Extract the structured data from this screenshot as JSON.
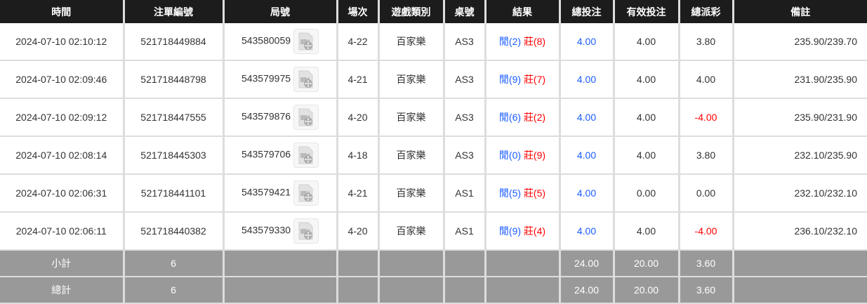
{
  "headers": [
    "時間",
    "注單編號",
    "局號",
    "場次",
    "遊戲類別",
    "桌號",
    "結果",
    "總投注",
    "有效投注",
    "總派彩",
    "備註"
  ],
  "rows": [
    {
      "time": "2024-07-10 02:10:12",
      "bet_id": "521718449884",
      "round": "543580059",
      "shoe": "4-22",
      "game": "百家樂",
      "table": "AS3",
      "player": "閒(2)",
      "banker": "莊(8)",
      "total_bet": "4.00",
      "valid_bet": "4.00",
      "payout": "3.80",
      "payout_negative": false,
      "note": "235.90/239.70"
    },
    {
      "time": "2024-07-10 02:09:46",
      "bet_id": "521718448798",
      "round": "543579975",
      "shoe": "4-21",
      "game": "百家樂",
      "table": "AS3",
      "player": "閒(9)",
      "banker": "莊(7)",
      "total_bet": "4.00",
      "valid_bet": "4.00",
      "payout": "4.00",
      "payout_negative": false,
      "note": "231.90/235.90"
    },
    {
      "time": "2024-07-10 02:09:12",
      "bet_id": "521718447555",
      "round": "543579876",
      "shoe": "4-20",
      "game": "百家樂",
      "table": "AS3",
      "player": "閒(6)",
      "banker": "莊(2)",
      "total_bet": "4.00",
      "valid_bet": "4.00",
      "payout": "-4.00",
      "payout_negative": true,
      "note": "235.90/231.90"
    },
    {
      "time": "2024-07-10 02:08:14",
      "bet_id": "521718445303",
      "round": "543579706",
      "shoe": "4-18",
      "game": "百家樂",
      "table": "AS3",
      "player": "閒(0)",
      "banker": "莊(9)",
      "total_bet": "4.00",
      "valid_bet": "4.00",
      "payout": "3.80",
      "payout_negative": false,
      "note": "232.10/235.90"
    },
    {
      "time": "2024-07-10 02:06:31",
      "bet_id": "521718441101",
      "round": "543579421",
      "shoe": "4-21",
      "game": "百家樂",
      "table": "AS1",
      "player": "閒(5)",
      "banker": "莊(5)",
      "total_bet": "4.00",
      "valid_bet": "0.00",
      "payout": "0.00",
      "payout_negative": false,
      "note": "232.10/232.10"
    },
    {
      "time": "2024-07-10 02:06:11",
      "bet_id": "521718440382",
      "round": "543579330",
      "shoe": "4-20",
      "game": "百家樂",
      "table": "AS1",
      "player": "閒(9)",
      "banker": "莊(4)",
      "total_bet": "4.00",
      "valid_bet": "4.00",
      "payout": "-4.00",
      "payout_negative": true,
      "note": "236.10/232.10"
    }
  ],
  "summary": [
    {
      "label": "小計",
      "count": "6",
      "total_bet": "24.00",
      "valid_bet": "20.00",
      "payout": "3.60"
    },
    {
      "label": "總計",
      "count": "6",
      "total_bet": "24.00",
      "valid_bet": "20.00",
      "payout": "3.60"
    }
  ],
  "colors": {
    "header_bg": "#1c1c1c",
    "summary_bg": "#999999",
    "player": "#1a5cff",
    "banker": "#ff0000"
  },
  "icons": {
    "replay": "video-file-icon"
  }
}
